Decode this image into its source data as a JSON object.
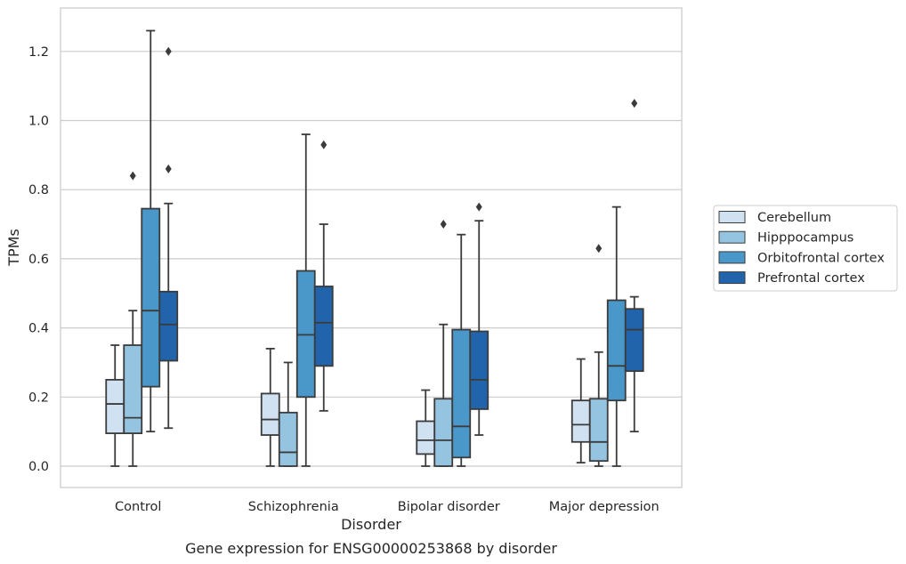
{
  "chart_data": {
    "type": "box",
    "xlabel": "Disorder",
    "ylabel": "TPMs",
    "caption": "Gene expression for ENSG00000253868 by disorder",
    "ylim": [
      -0.06,
      1.32
    ],
    "yticks": [
      "0.0",
      "0.2",
      "0.4",
      "0.6",
      "0.8",
      "1.0",
      "1.2"
    ],
    "grid": "horizontal",
    "legend_position": "right",
    "categories": [
      "Control",
      "Schizophrenia",
      "Bipolar disorder",
      "Major depression"
    ],
    "series": [
      {
        "name": "Cerebellum",
        "color": "#d0e1f2",
        "boxes": [
          {
            "whislo": 0.0,
            "q1": 0.095,
            "med": 0.18,
            "q3": 0.25,
            "whishi": 0.35,
            "fliers": []
          },
          {
            "whislo": 0.0,
            "q1": 0.09,
            "med": 0.135,
            "q3": 0.21,
            "whishi": 0.34,
            "fliers": []
          },
          {
            "whislo": 0.0,
            "q1": 0.035,
            "med": 0.075,
            "q3": 0.13,
            "whishi": 0.22,
            "fliers": []
          },
          {
            "whislo": 0.01,
            "q1": 0.07,
            "med": 0.12,
            "q3": 0.19,
            "whishi": 0.31,
            "fliers": []
          }
        ]
      },
      {
        "name": "Hipppocampus",
        "color": "#94c4df",
        "boxes": [
          {
            "whislo": 0.0,
            "q1": 0.095,
            "med": 0.14,
            "q3": 0.35,
            "whishi": 0.45,
            "fliers": [
              0.84
            ]
          },
          {
            "whislo": 0.0,
            "q1": 0.0,
            "med": 0.04,
            "q3": 0.155,
            "whishi": 0.3,
            "fliers": []
          },
          {
            "whislo": 0.0,
            "q1": 0.0,
            "med": 0.075,
            "q3": 0.195,
            "whishi": 0.41,
            "fliers": [
              0.7
            ]
          },
          {
            "whislo": 0.0,
            "q1": 0.015,
            "med": 0.07,
            "q3": 0.195,
            "whishi": 0.33,
            "fliers": [
              0.63
            ]
          }
        ]
      },
      {
        "name": "Orbitofrontal cortex",
        "color": "#4a98c9",
        "boxes": [
          {
            "whislo": 0.1,
            "q1": 0.23,
            "med": 0.45,
            "q3": 0.745,
            "whishi": 1.26,
            "fliers": []
          },
          {
            "whislo": 0.0,
            "q1": 0.2,
            "med": 0.38,
            "q3": 0.565,
            "whishi": 0.96,
            "fliers": []
          },
          {
            "whislo": 0.0,
            "q1": 0.025,
            "med": 0.115,
            "q3": 0.395,
            "whishi": 0.67,
            "fliers": []
          },
          {
            "whislo": 0.0,
            "q1": 0.19,
            "med": 0.29,
            "q3": 0.48,
            "whishi": 0.75,
            "fliers": []
          }
        ]
      },
      {
        "name": "Prefrontal cortex",
        "color": "#2164ab",
        "boxes": [
          {
            "whislo": 0.11,
            "q1": 0.305,
            "med": 0.41,
            "q3": 0.505,
            "whishi": 0.76,
            "fliers": [
              0.86,
              1.2
            ]
          },
          {
            "whislo": 0.16,
            "q1": 0.29,
            "med": 0.415,
            "q3": 0.52,
            "whishi": 0.7,
            "fliers": [
              0.93
            ]
          },
          {
            "whislo": 0.09,
            "q1": 0.165,
            "med": 0.25,
            "q3": 0.39,
            "whishi": 0.71,
            "fliers": [
              0.75
            ]
          },
          {
            "whislo": 0.1,
            "q1": 0.275,
            "med": 0.395,
            "q3": 0.455,
            "whishi": 0.49,
            "fliers": [
              1.05
            ]
          }
        ]
      }
    ]
  }
}
